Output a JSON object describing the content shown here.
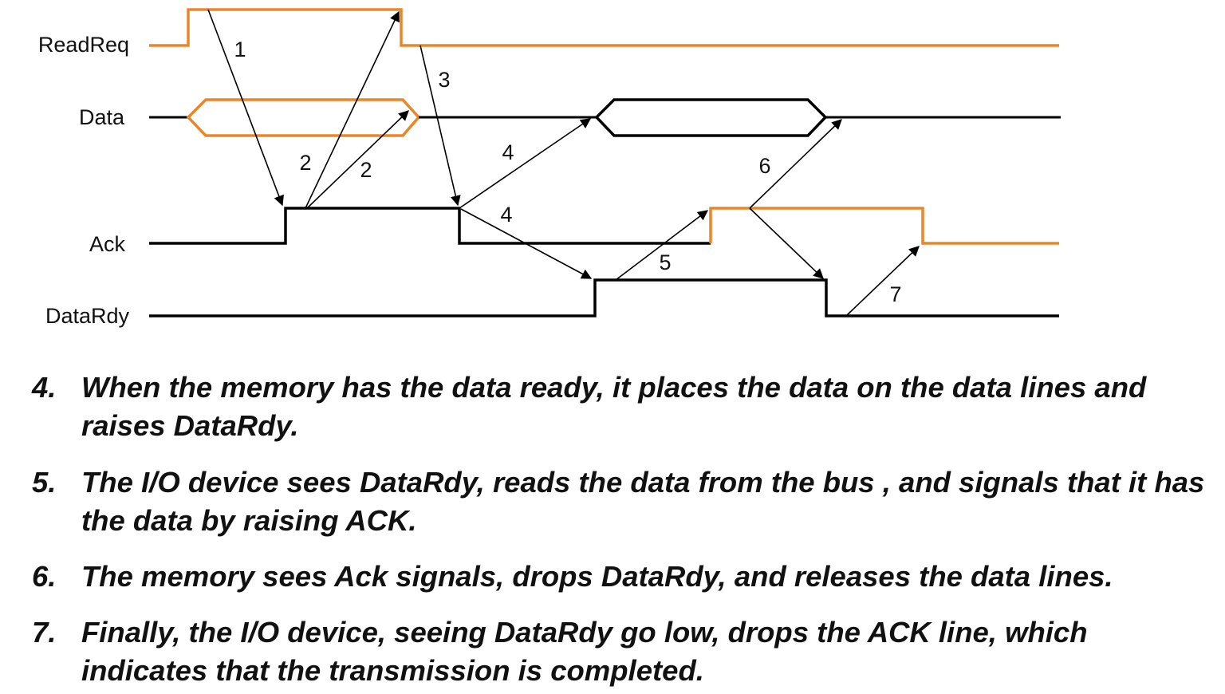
{
  "colors": {
    "active": "#E8872A",
    "line": "#000000"
  },
  "signals": [
    {
      "id": "readreq",
      "label": "ReadReq"
    },
    {
      "id": "data",
      "label": "Data"
    },
    {
      "id": "ack",
      "label": "Ack"
    },
    {
      "id": "datardy",
      "label": "DataRdy"
    }
  ],
  "arrow_numbers": [
    "1",
    "2",
    "2",
    "3",
    "4",
    "4",
    "5",
    "6",
    "7"
  ],
  "steps": [
    {
      "number": "4.",
      "text": "When the memory has the data ready, it places the data on the data lines and raises DataRdy."
    },
    {
      "number": "5.",
      "text": "The I/O device sees DataRdy, reads the data from the bus , and signals that it has the data by raising ACK."
    },
    {
      "number": "6.",
      "text": "The memory sees Ack signals, drops DataRdy, and releases the data lines."
    },
    {
      "number": "7.",
      "text": "Finally, the I/O device, seeing DataRdy go low, drops the ACK line, which indicates that the transmission is completed."
    }
  ]
}
